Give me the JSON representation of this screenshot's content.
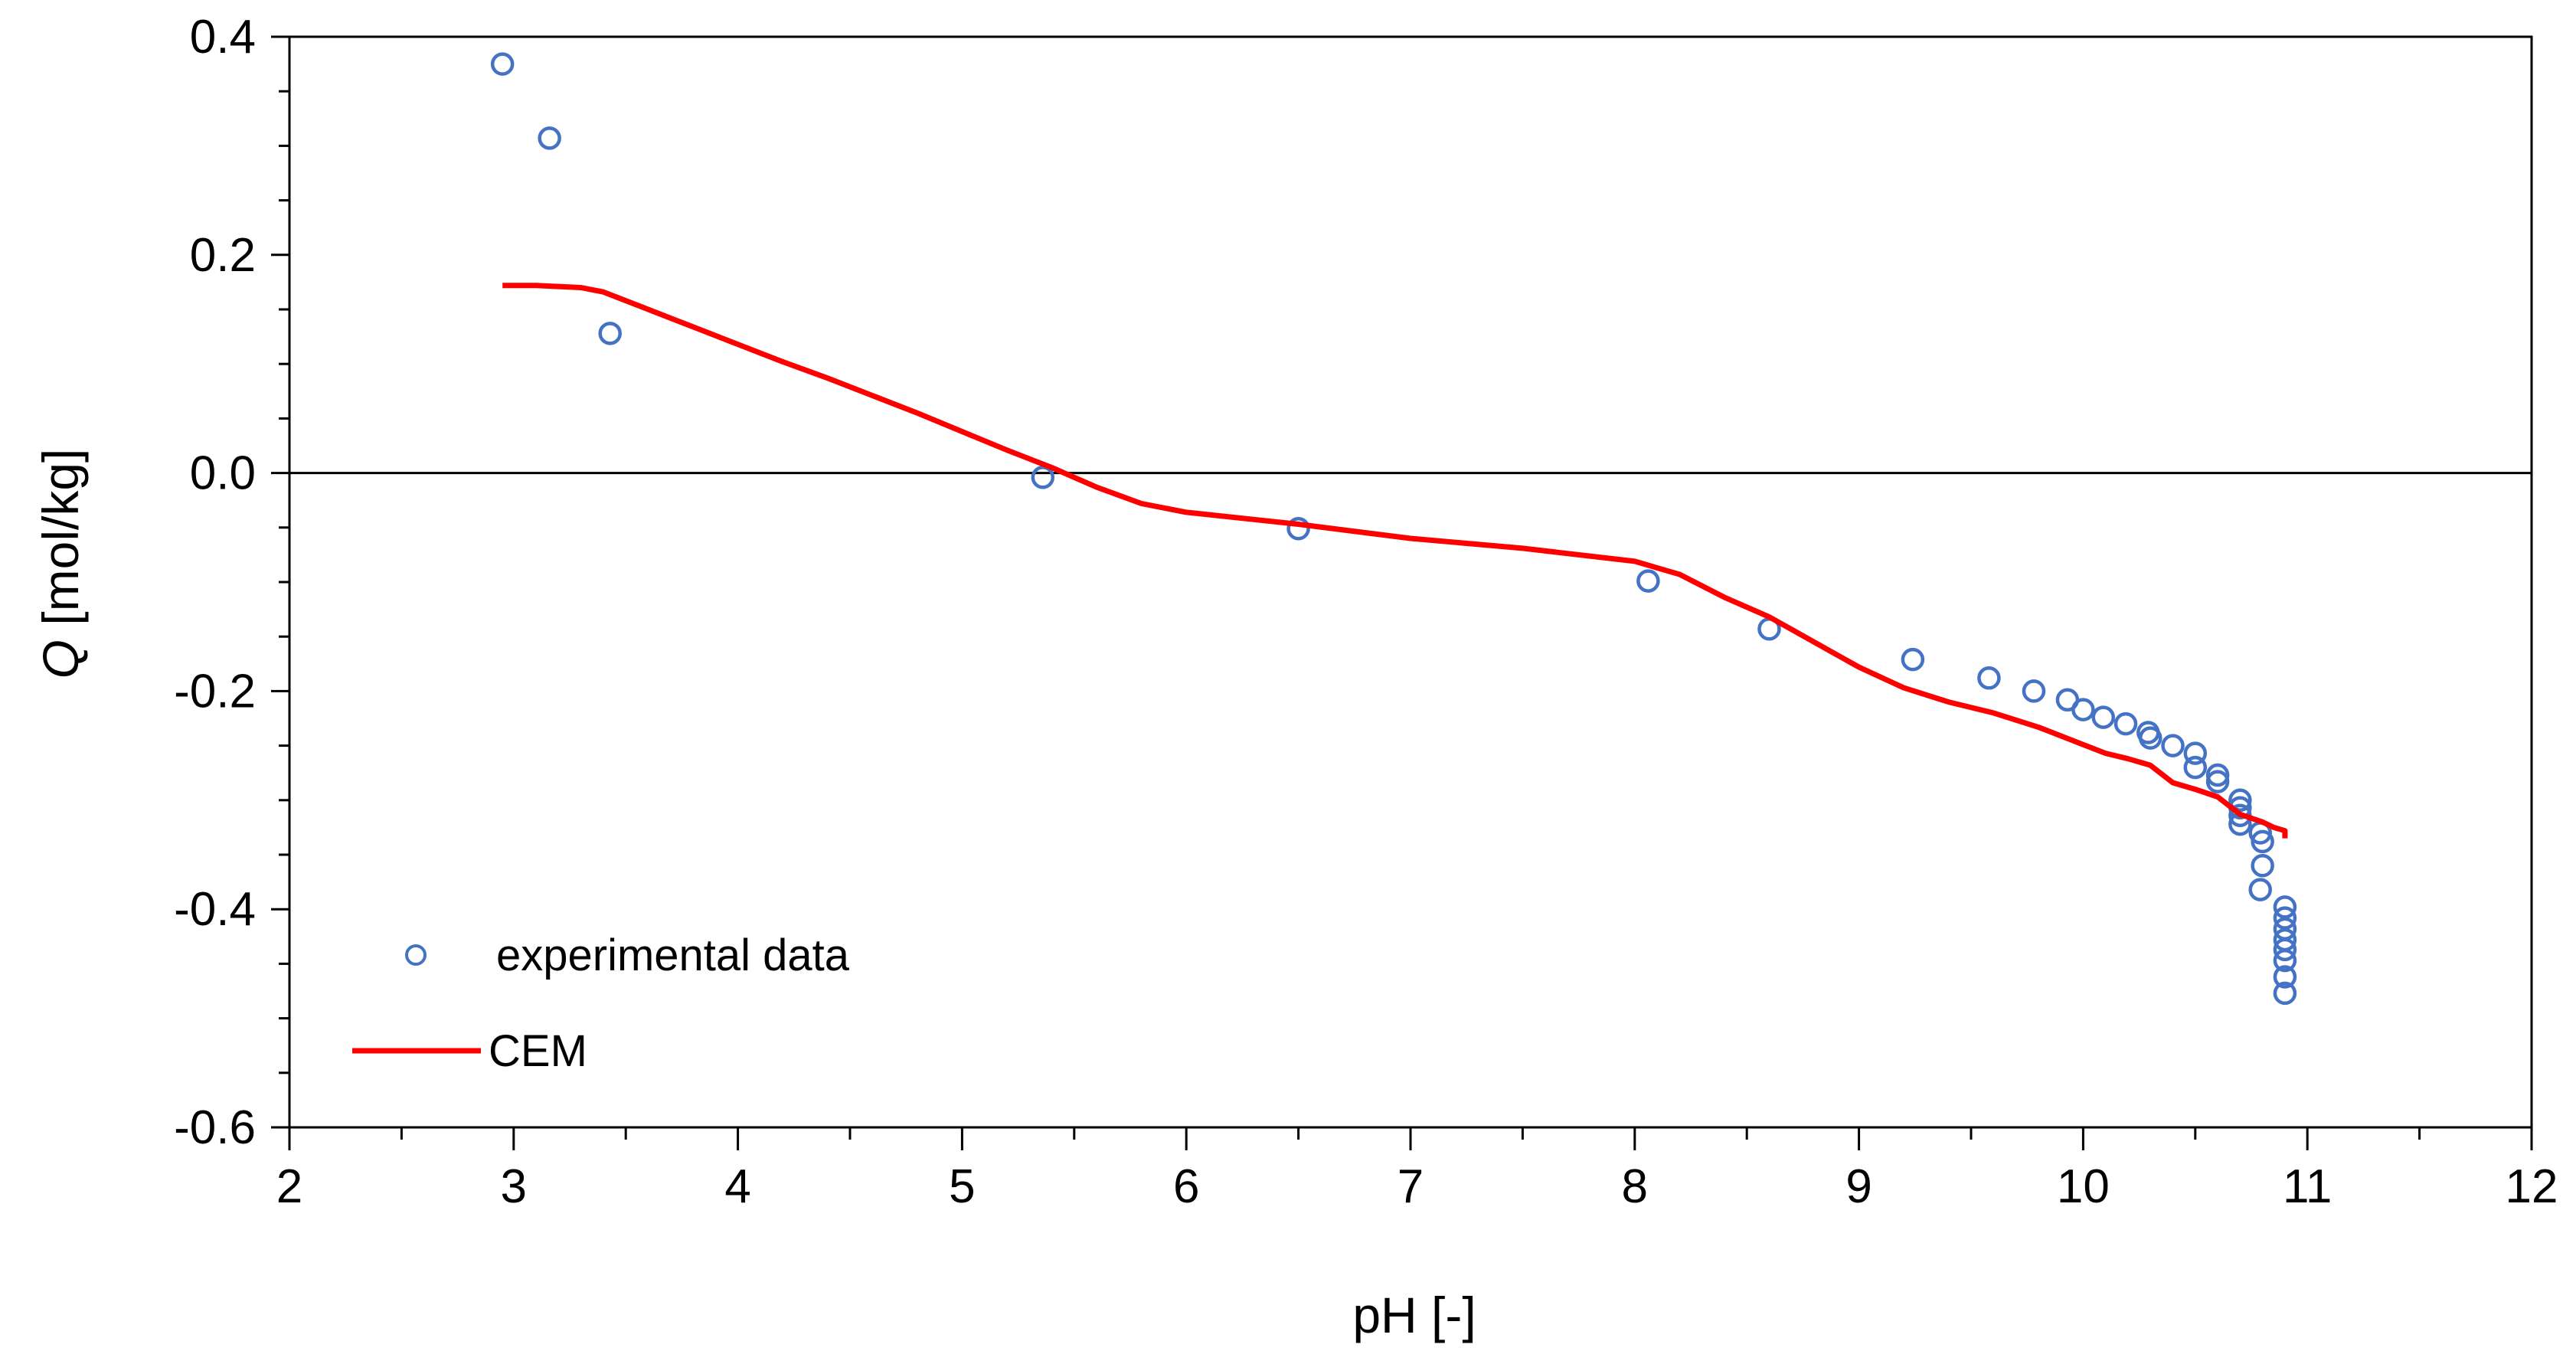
{
  "chart_data": {
    "type": "scatter",
    "xlabel": "pH [-]",
    "ylabel_italic": "Q",
    "ylabel_rest": " [mol/kg]",
    "xlim": [
      2,
      12
    ],
    "ylim": [
      -0.6,
      0.4
    ],
    "x_ticks": [
      2,
      3,
      4,
      5,
      6,
      7,
      8,
      9,
      10,
      11,
      12
    ],
    "x_tick_labels": [
      "2",
      "3",
      "4",
      "5",
      "6",
      "7",
      "8",
      "9",
      "10",
      "11",
      "12"
    ],
    "y_ticks": [
      -0.6,
      -0.4,
      -0.2,
      0.0,
      0.2,
      0.4
    ],
    "y_tick_labels": [
      "-0.6",
      "-0.4",
      "-0.2",
      "0.0",
      "0.2",
      "0.4"
    ],
    "grid": false,
    "zero_line": true,
    "legend_position": "bottom-left",
    "series": [
      {
        "name": "experimental data",
        "kind": "markers",
        "marker": "open-circle",
        "color": "#4472C4",
        "points": [
          [
            2.95,
            0.375
          ],
          [
            3.16,
            0.307
          ],
          [
            3.43,
            0.128
          ],
          [
            5.36,
            -0.004
          ],
          [
            6.5,
            -0.051
          ],
          [
            8.06,
            -0.099
          ],
          [
            8.6,
            -0.143
          ],
          [
            9.24,
            -0.171
          ],
          [
            9.58,
            -0.188
          ],
          [
            9.78,
            -0.2
          ],
          [
            9.93,
            -0.208
          ],
          [
            10.0,
            -0.217
          ],
          [
            10.09,
            -0.224
          ],
          [
            10.19,
            -0.23
          ],
          [
            10.29,
            -0.238
          ],
          [
            10.3,
            -0.243
          ],
          [
            10.4,
            -0.25
          ],
          [
            10.5,
            -0.257
          ],
          [
            10.5,
            -0.27
          ],
          [
            10.6,
            -0.277
          ],
          [
            10.6,
            -0.283
          ],
          [
            10.7,
            -0.3
          ],
          [
            10.7,
            -0.307
          ],
          [
            10.7,
            -0.314
          ],
          [
            10.7,
            -0.322
          ],
          [
            10.79,
            -0.33
          ],
          [
            10.8,
            -0.338
          ],
          [
            10.8,
            -0.36
          ],
          [
            10.79,
            -0.382
          ],
          [
            10.9,
            -0.398
          ],
          [
            10.9,
            -0.408
          ],
          [
            10.9,
            -0.418
          ],
          [
            10.9,
            -0.428
          ],
          [
            10.9,
            -0.437
          ],
          [
            10.9,
            -0.447
          ],
          [
            10.9,
            -0.462
          ],
          [
            10.9,
            -0.477
          ]
        ]
      },
      {
        "name": "CEM",
        "kind": "line",
        "color": "#FF0000",
        "points": [
          [
            2.95,
            0.172
          ],
          [
            3.1,
            0.172
          ],
          [
            3.2,
            0.171
          ],
          [
            3.3,
            0.17
          ],
          [
            3.4,
            0.166
          ],
          [
            3.6,
            0.15
          ],
          [
            3.8,
            0.134
          ],
          [
            4.0,
            0.118
          ],
          [
            4.2,
            0.102
          ],
          [
            4.4,
            0.087
          ],
          [
            4.6,
            0.071
          ],
          [
            4.8,
            0.055
          ],
          [
            5.0,
            0.038
          ],
          [
            5.2,
            0.021
          ],
          [
            5.4,
            0.005
          ],
          [
            5.6,
            -0.013
          ],
          [
            5.8,
            -0.028
          ],
          [
            6.0,
            -0.036
          ],
          [
            6.5,
            -0.047
          ],
          [
            7.0,
            -0.06
          ],
          [
            7.5,
            -0.069
          ],
          [
            8.0,
            -0.081
          ],
          [
            8.2,
            -0.093
          ],
          [
            8.4,
            -0.114
          ],
          [
            8.6,
            -0.132
          ],
          [
            8.8,
            -0.155
          ],
          [
            9.0,
            -0.178
          ],
          [
            9.2,
            -0.197
          ],
          [
            9.4,
            -0.21
          ],
          [
            9.6,
            -0.22
          ],
          [
            9.8,
            -0.233
          ],
          [
            10.0,
            -0.249
          ],
          [
            10.1,
            -0.257
          ],
          [
            10.2,
            -0.262
          ],
          [
            10.3,
            -0.268
          ],
          [
            10.4,
            -0.284
          ],
          [
            10.5,
            -0.29
          ],
          [
            10.6,
            -0.297
          ],
          [
            10.7,
            -0.313
          ],
          [
            10.8,
            -0.32
          ],
          [
            10.85,
            -0.325
          ],
          [
            10.9,
            -0.328
          ],
          [
            10.9,
            -0.335
          ]
        ]
      }
    ]
  }
}
